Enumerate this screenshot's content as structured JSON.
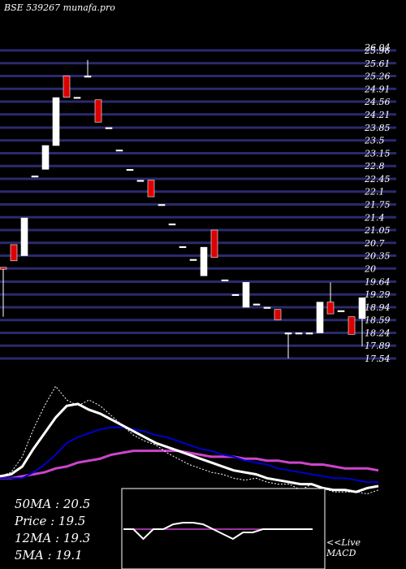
{
  "header": {
    "watermark": "BSE 539267 munafa.pro"
  },
  "colors": {
    "background": "#000000",
    "gridline": "#2a2a6e",
    "bullish": "#ffffff",
    "bearish": "#dd0000",
    "ma_fast": "#ffffff",
    "ma_mid": "#0000cc",
    "ma_slow": "#cc44cc",
    "macd_line": "#ffffff",
    "macd_signal": "#cc44cc"
  },
  "chart_data": {
    "type": "candlestick",
    "y_ticks": [
      "26.04",
      "25.96",
      "25.61",
      "25.26",
      "24.91",
      "24.56",
      "24.21",
      "23.85",
      "23.5",
      "23.15",
      "22.8",
      "22.45",
      "22.1",
      "21.75",
      "21.4",
      "21.05",
      "20.7",
      "20.35",
      "20",
      "19.64",
      "19.29",
      "18.94",
      "18.59",
      "18.24",
      "17.89",
      "17.54"
    ],
    "ylim": [
      17.54,
      25.96
    ],
    "candles": [
      {
        "open": 20.03,
        "high": 20.03,
        "low": 18.68,
        "close": 19.98
      },
      {
        "open": 20.65,
        "high": 20.65,
        "low": 20.21,
        "close": 20.21
      },
      {
        "open": 20.35,
        "high": 21.38,
        "low": 20.35,
        "close": 21.38
      },
      {
        "open": 22.53,
        "high": 22.53,
        "low": 22.53,
        "close": 22.53
      },
      {
        "open": 22.71,
        "high": 23.36,
        "low": 22.71,
        "close": 23.36
      },
      {
        "open": 23.36,
        "high": 24.67,
        "low": 23.36,
        "close": 24.67
      },
      {
        "open": 25.26,
        "high": 25.26,
        "low": 24.68,
        "close": 24.68
      },
      {
        "open": 24.68,
        "high": 24.68,
        "low": 24.68,
        "close": 24.68
      },
      {
        "open": 25.26,
        "high": 25.7,
        "low": 25.26,
        "close": 25.26
      },
      {
        "open": 24.61,
        "high": 24.61,
        "low": 24.0,
        "close": 24.0
      },
      {
        "open": 23.85,
        "high": 23.85,
        "low": 23.85,
        "close": 23.85
      },
      {
        "open": 23.24,
        "high": 23.24,
        "low": 23.24,
        "close": 23.24
      },
      {
        "open": 22.71,
        "high": 22.71,
        "low": 22.71,
        "close": 22.71
      },
      {
        "open": 22.41,
        "high": 22.41,
        "low": 22.41,
        "close": 22.41
      },
      {
        "open": 22.41,
        "high": 22.41,
        "low": 21.96,
        "close": 21.96
      },
      {
        "open": 21.75,
        "high": 21.75,
        "low": 21.75,
        "close": 21.75
      },
      {
        "open": 21.22,
        "high": 21.22,
        "low": 21.22,
        "close": 21.22
      },
      {
        "open": 20.6,
        "high": 20.6,
        "low": 20.6,
        "close": 20.6
      },
      {
        "open": 20.25,
        "high": 20.25,
        "low": 20.25,
        "close": 20.25
      },
      {
        "open": 19.8,
        "high": 20.58,
        "low": 19.8,
        "close": 20.58
      },
      {
        "open": 21.05,
        "high": 21.05,
        "low": 20.3,
        "close": 20.3
      },
      {
        "open": 19.69,
        "high": 19.69,
        "low": 19.69,
        "close": 19.69
      },
      {
        "open": 19.29,
        "high": 19.29,
        "low": 19.29,
        "close": 19.29
      },
      {
        "open": 18.94,
        "high": 19.62,
        "low": 18.94,
        "close": 19.62
      },
      {
        "open": 19.03,
        "high": 19.03,
        "low": 19.03,
        "close": 19.03
      },
      {
        "open": 18.94,
        "high": 18.94,
        "low": 18.94,
        "close": 18.94
      },
      {
        "open": 18.88,
        "high": 18.88,
        "low": 18.6,
        "close": 18.6
      },
      {
        "open": 18.24,
        "high": 18.24,
        "low": 17.54,
        "close": 18.24
      },
      {
        "open": 18.24,
        "high": 18.24,
        "low": 18.24,
        "close": 18.24
      },
      {
        "open": 18.24,
        "high": 18.24,
        "low": 18.24,
        "close": 18.24
      },
      {
        "open": 18.24,
        "high": 19.08,
        "low": 18.24,
        "close": 19.08
      },
      {
        "open": 19.08,
        "high": 19.62,
        "low": 18.76,
        "close": 18.76
      },
      {
        "open": 18.85,
        "high": 18.85,
        "low": 18.85,
        "close": 18.85
      },
      {
        "open": 18.68,
        "high": 18.68,
        "low": 18.2,
        "close": 18.2
      },
      {
        "open": 18.63,
        "high": 19.2,
        "low": 17.87,
        "close": 19.2
      }
    ],
    "indicators": {
      "ma_fast": [
        19.2,
        19.3,
        19.7,
        20.6,
        21.4,
        22.2,
        22.8,
        22.9,
        22.6,
        22.4,
        22.1,
        21.8,
        21.5,
        21.2,
        20.9,
        20.7,
        20.5,
        20.3,
        20.1,
        19.9,
        19.7,
        19.5,
        19.4,
        19.3,
        19.1,
        19.0,
        18.9,
        18.8,
        18.8,
        18.6,
        18.5,
        18.5,
        18.4,
        18.6,
        18.7
      ],
      "ma_mid": [
        19.1,
        19.1,
        19.1,
        19.4,
        19.8,
        20.3,
        20.9,
        21.2,
        21.4,
        21.6,
        21.7,
        21.7,
        21.6,
        21.5,
        21.3,
        21.2,
        21.0,
        20.8,
        20.6,
        20.5,
        20.3,
        20.2,
        20.0,
        19.9,
        19.8,
        19.6,
        19.5,
        19.4,
        19.3,
        19.2,
        19.1,
        19.1,
        19.0,
        18.9,
        18.9
      ],
      "ma_slow": [
        19.1,
        19.1,
        19.2,
        19.3,
        19.4,
        19.6,
        19.7,
        19.9,
        20.0,
        20.1,
        20.3,
        20.4,
        20.5,
        20.5,
        20.5,
        20.5,
        20.5,
        20.4,
        20.3,
        20.2,
        20.2,
        20.2,
        20.1,
        20.1,
        20.0,
        20.0,
        19.9,
        19.9,
        19.8,
        19.8,
        19.7,
        19.6,
        19.6,
        19.6,
        19.5
      ],
      "price_line": [
        19.2,
        19.4,
        20.2,
        21.6,
        22.8,
        23.8,
        23.1,
        22.8,
        23.1,
        22.8,
        22.3,
        21.8,
        21.3,
        21.0,
        20.8,
        20.4,
        20.1,
        19.8,
        19.6,
        19.4,
        19.3,
        19.1,
        19.0,
        19.1,
        18.9,
        18.8,
        18.8,
        18.5,
        18.8,
        18.6,
        18.4,
        18.4,
        18.4,
        18.3,
        18.5
      ]
    },
    "macd": {
      "line": [
        0.0,
        0.0,
        -0.3,
        0.0,
        0.0,
        0.15,
        0.2,
        0.2,
        0.15,
        0.0,
        -0.15,
        -0.3,
        -0.1,
        -0.1,
        0.0,
        0.0,
        0.0,
        0.0,
        0.0,
        0.0
      ],
      "signal": [
        0.0,
        0.0,
        0.0,
        0.0,
        0.0,
        0.0,
        0.0,
        0.0,
        0.0,
        0.0,
        0.0,
        0.0,
        0.0,
        0.0,
        0.0,
        0.0,
        0.0,
        0.0,
        0.0,
        0.0
      ]
    }
  },
  "stats": {
    "ma50": "50MA : 20.5",
    "price": "Price  : 19.5",
    "ma12": "12MA : 19.3",
    "ma5": "5MA : 19.1"
  },
  "footer": {
    "live": "<<Live",
    "macd": "MACD"
  }
}
